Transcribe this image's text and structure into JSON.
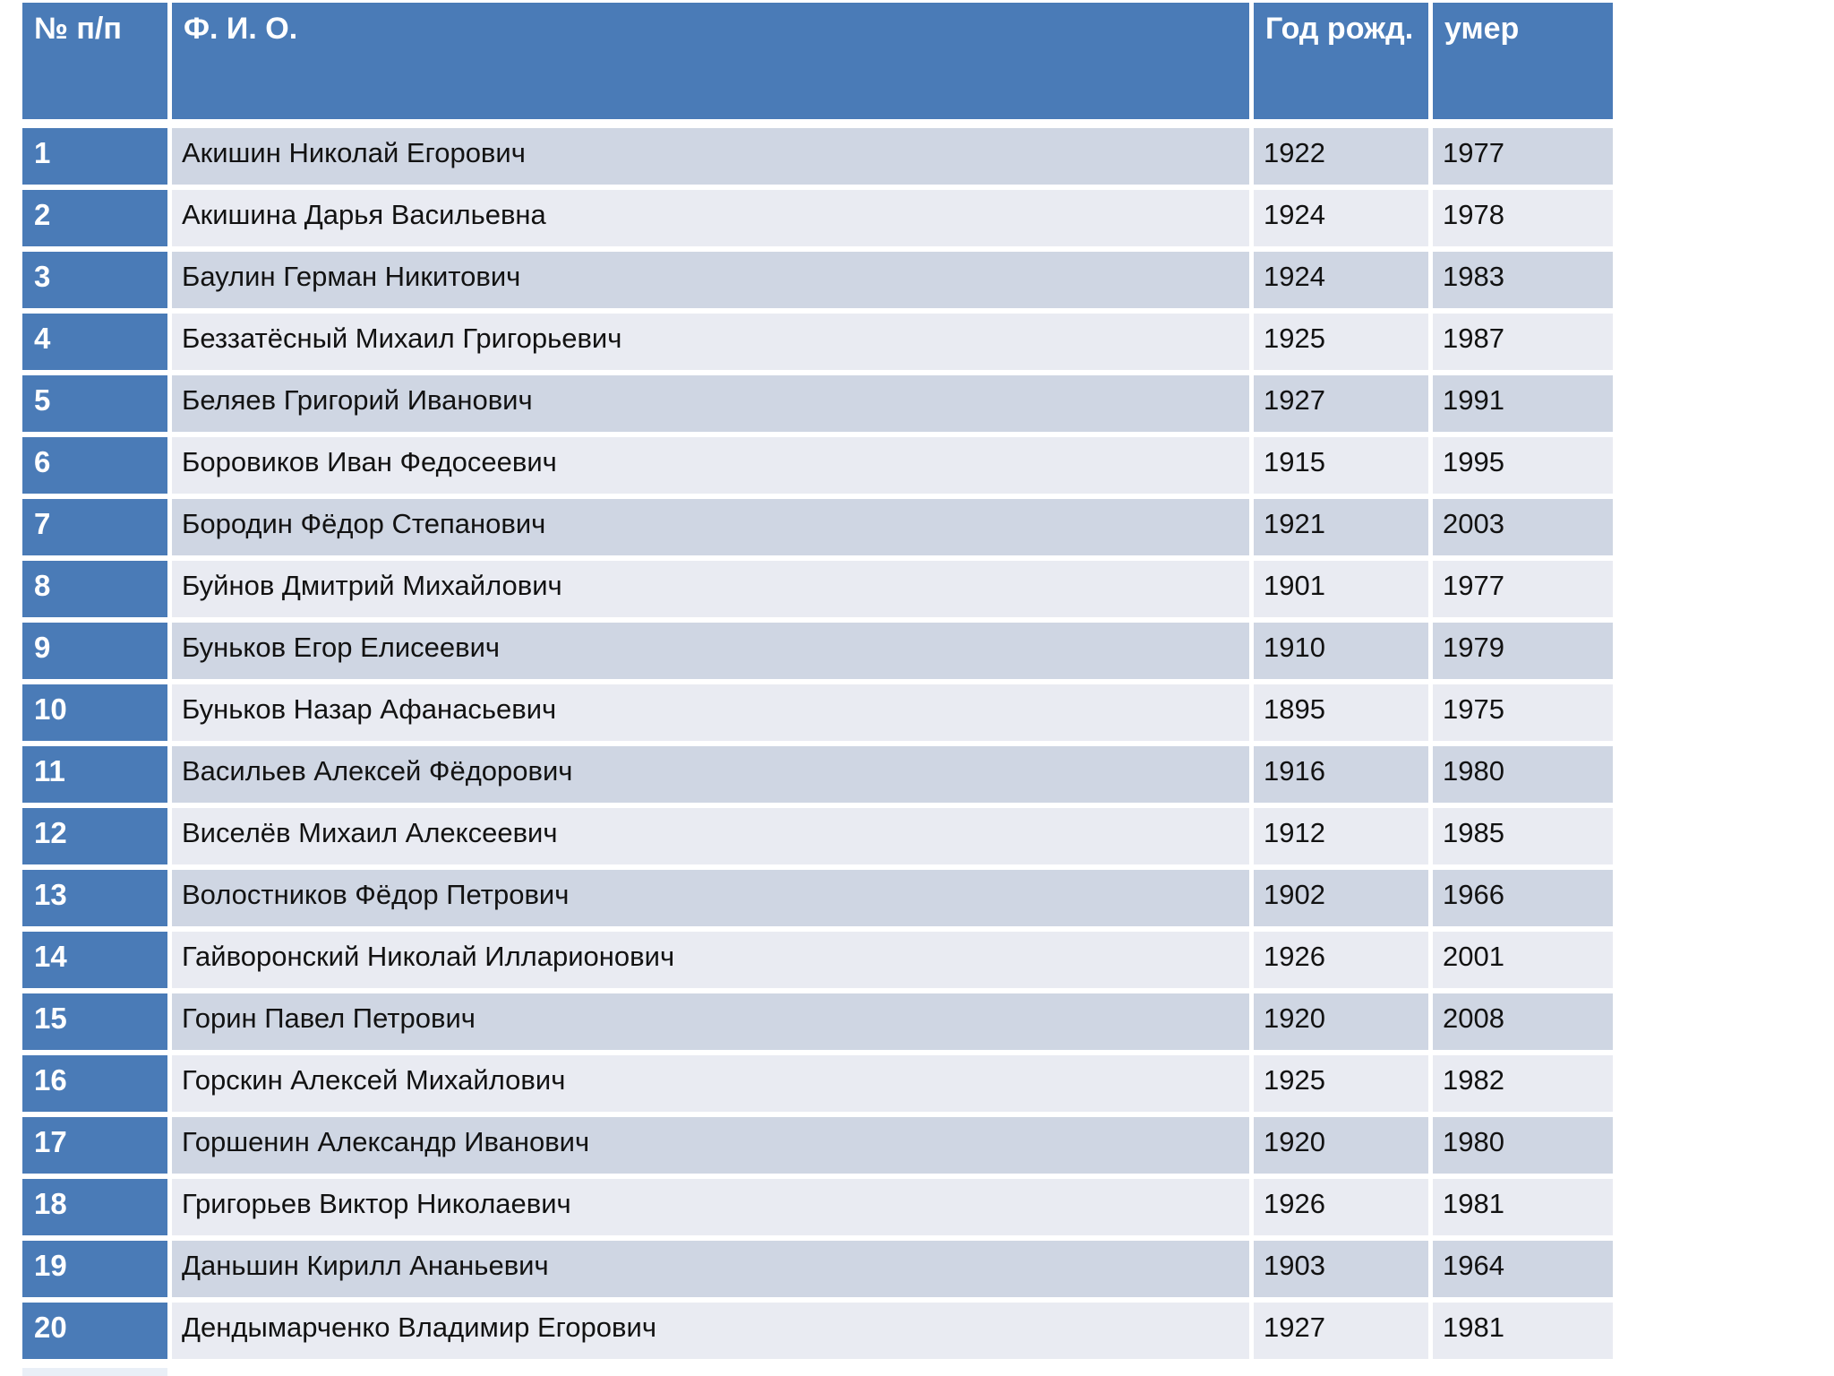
{
  "table": {
    "columns": [
      {
        "key": "num",
        "label": "№ п/п"
      },
      {
        "key": "name",
        "label": "Ф. И. О."
      },
      {
        "key": "born",
        "label": "Год рожд."
      },
      {
        "key": "died",
        "label": "умер"
      }
    ],
    "rows": [
      {
        "num": "1",
        "name": "Акишин Николай Егорович",
        "born": "1922",
        "died": "1977"
      },
      {
        "num": "2",
        "name": "Акишина Дарья Васильевна",
        "born": "1924",
        "died": "1978"
      },
      {
        "num": "3",
        "name": "Баулин Герман Никитович",
        "born": "1924",
        "died": "1983"
      },
      {
        "num": "4",
        "name": "Беззатёсный Михаил Григорьевич",
        "born": "1925",
        "died": "1987"
      },
      {
        "num": "5",
        "name": "Беляев Григорий Иванович",
        "born": "1927",
        "died": "1991"
      },
      {
        "num": "6",
        "name": "Боровиков Иван Федосеевич",
        "born": "1915",
        "died": "1995"
      },
      {
        "num": "7",
        "name": "Бородин Фёдор Степанович",
        "born": "1921",
        "died": "2003"
      },
      {
        "num": "8",
        "name": "Буйнов Дмитрий Михайлович",
        "born": "1901",
        "died": "1977"
      },
      {
        "num": "9",
        "name": "Буньков Егор Елисеевич",
        "born": "1910",
        "died": "1979"
      },
      {
        "num": "10",
        "name": "Буньков Назар Афанасьевич",
        "born": "1895",
        "died": "1975"
      },
      {
        "num": "11",
        "name": "Васильев Алексей Фёдорович",
        "born": "1916",
        "died": "1980"
      },
      {
        "num": "12",
        "name": "Виселёв Михаил Алексеевич",
        "born": "1912",
        "died": "1985"
      },
      {
        "num": "13",
        "name": "Волостников Фёдор Петрович",
        "born": "1902",
        "died": "1966"
      },
      {
        "num": "14",
        "name": "Гайворонский Николай Илларионович",
        "born": "1926",
        "died": "2001"
      },
      {
        "num": "15",
        "name": "Горин Павел Петрович",
        "born": "1920",
        "died": "2008"
      },
      {
        "num": "16",
        "name": "Горскин Алексей Михайлович",
        "born": "1925",
        "died": "1982"
      },
      {
        "num": "17",
        "name": "Горшенин Александр Иванович",
        "born": "1920",
        "died": "1980"
      },
      {
        "num": "18",
        "name": "Григорьев Виктор Николаевич",
        "born": "1926",
        "died": "1981"
      },
      {
        "num": "19",
        "name": "Даньшин Кирилл Ананьевич",
        "born": "1903",
        "died": "1964"
      },
      {
        "num": "20",
        "name": "Дендымарченко Владимир Егорович",
        "born": "1927",
        "died": "1981"
      }
    ]
  },
  "colors": {
    "accent": "#4A7BB7",
    "bandDark": "#CFD6E3",
    "bandLight": "#E9EBF2",
    "fragment": "#E9EFF7",
    "headerText": "#FFFFFF",
    "bodyText": "#121212",
    "background": "#FFFFFF"
  }
}
